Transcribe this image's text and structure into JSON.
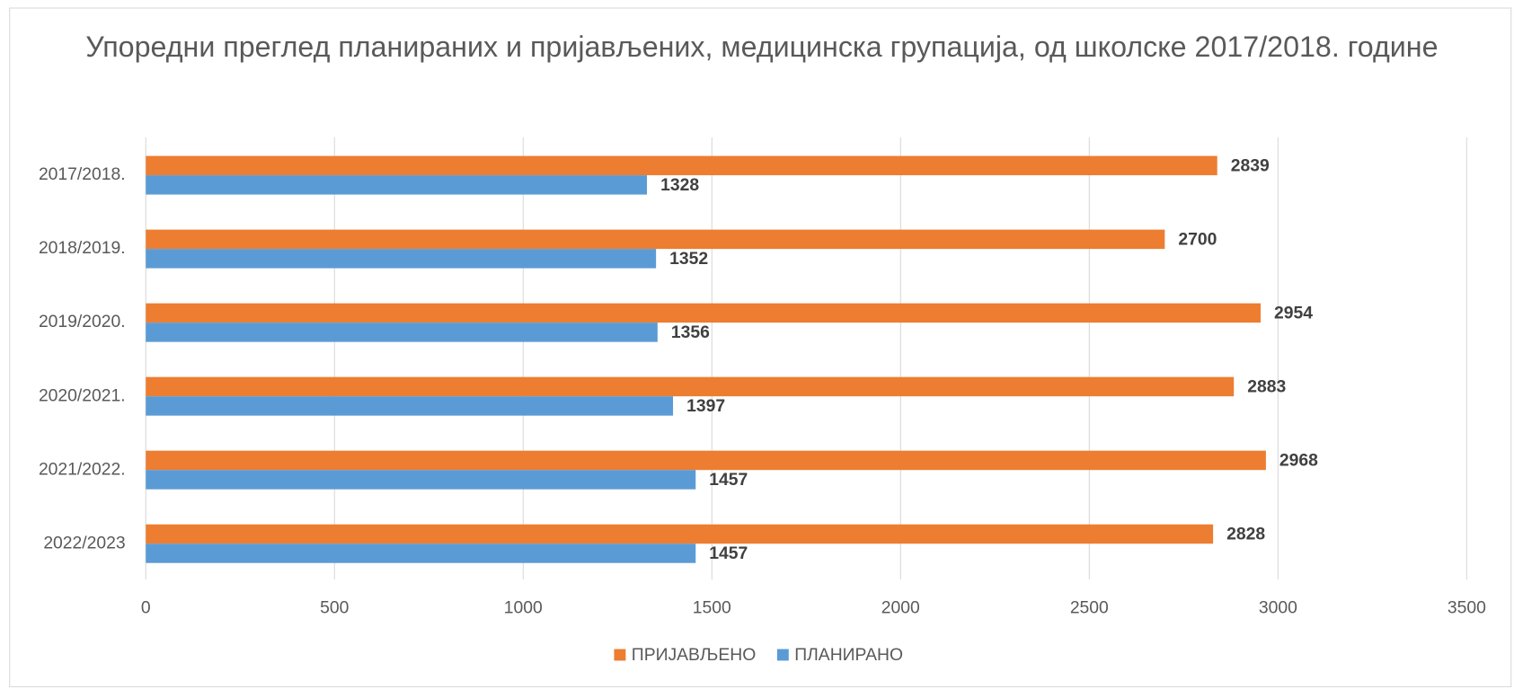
{
  "chart_data": {
    "type": "hbar",
    "title": "Упоредни преглед планираних и пријављених, медицинска групација, од школске 2017/2018. године",
    "categories": [
      "2017/2018.",
      "2018/2019.",
      "2019/2020.",
      "2020/2021.",
      "2021/2022.",
      "2022/2023"
    ],
    "series": [
      {
        "name": "ПРИЈАВЉЕНО",
        "color": "#ed7d31",
        "values": [
          2839,
          2700,
          2954,
          2883,
          2968,
          2828
        ]
      },
      {
        "name": "ПЛАНИРАНО",
        "color": "#5b9bd5",
        "values": [
          1328,
          1352,
          1356,
          1397,
          1457,
          1457
        ]
      }
    ],
    "xlim": [
      0,
      3500
    ],
    "xticks": [
      0,
      500,
      1000,
      1500,
      2000,
      2500,
      3000,
      3500
    ],
    "grid": true,
    "legend": "bottom"
  }
}
